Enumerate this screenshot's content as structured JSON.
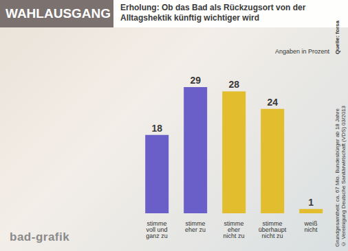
{
  "chart_data": {
    "type": "bar",
    "title": "WAHLAUSGANG",
    "subtitle": "Erholung: Ob das Bad als Rückzugsort von der Alltagshektik künftig wichtiger wird",
    "annotation": "Angaben in Prozent",
    "source": "Quelle: forsa",
    "footnotes": [
      "Grundgesamtheit: ca. 67 Mio. Bundesbürger ab 18 Jahre",
      "© Vereinigung Deutsche Sanitärwirtschaft (VDS) 03/2013"
    ],
    "logo": "bad-grafik",
    "categories": [
      "stimme voll und ganz zu",
      "stimme eher zu",
      "stimme eher nicht zu",
      "stimme überhaupt nicht zu",
      "weiß nicht"
    ],
    "values": [
      18,
      29,
      28,
      24,
      1
    ],
    "colors": [
      "#6a5ec8",
      "#6a5ec8",
      "#e2bd2e",
      "#e2bd2e",
      "#e2bd2e"
    ],
    "data_labels": true,
    "tick_labels": "x"
  }
}
